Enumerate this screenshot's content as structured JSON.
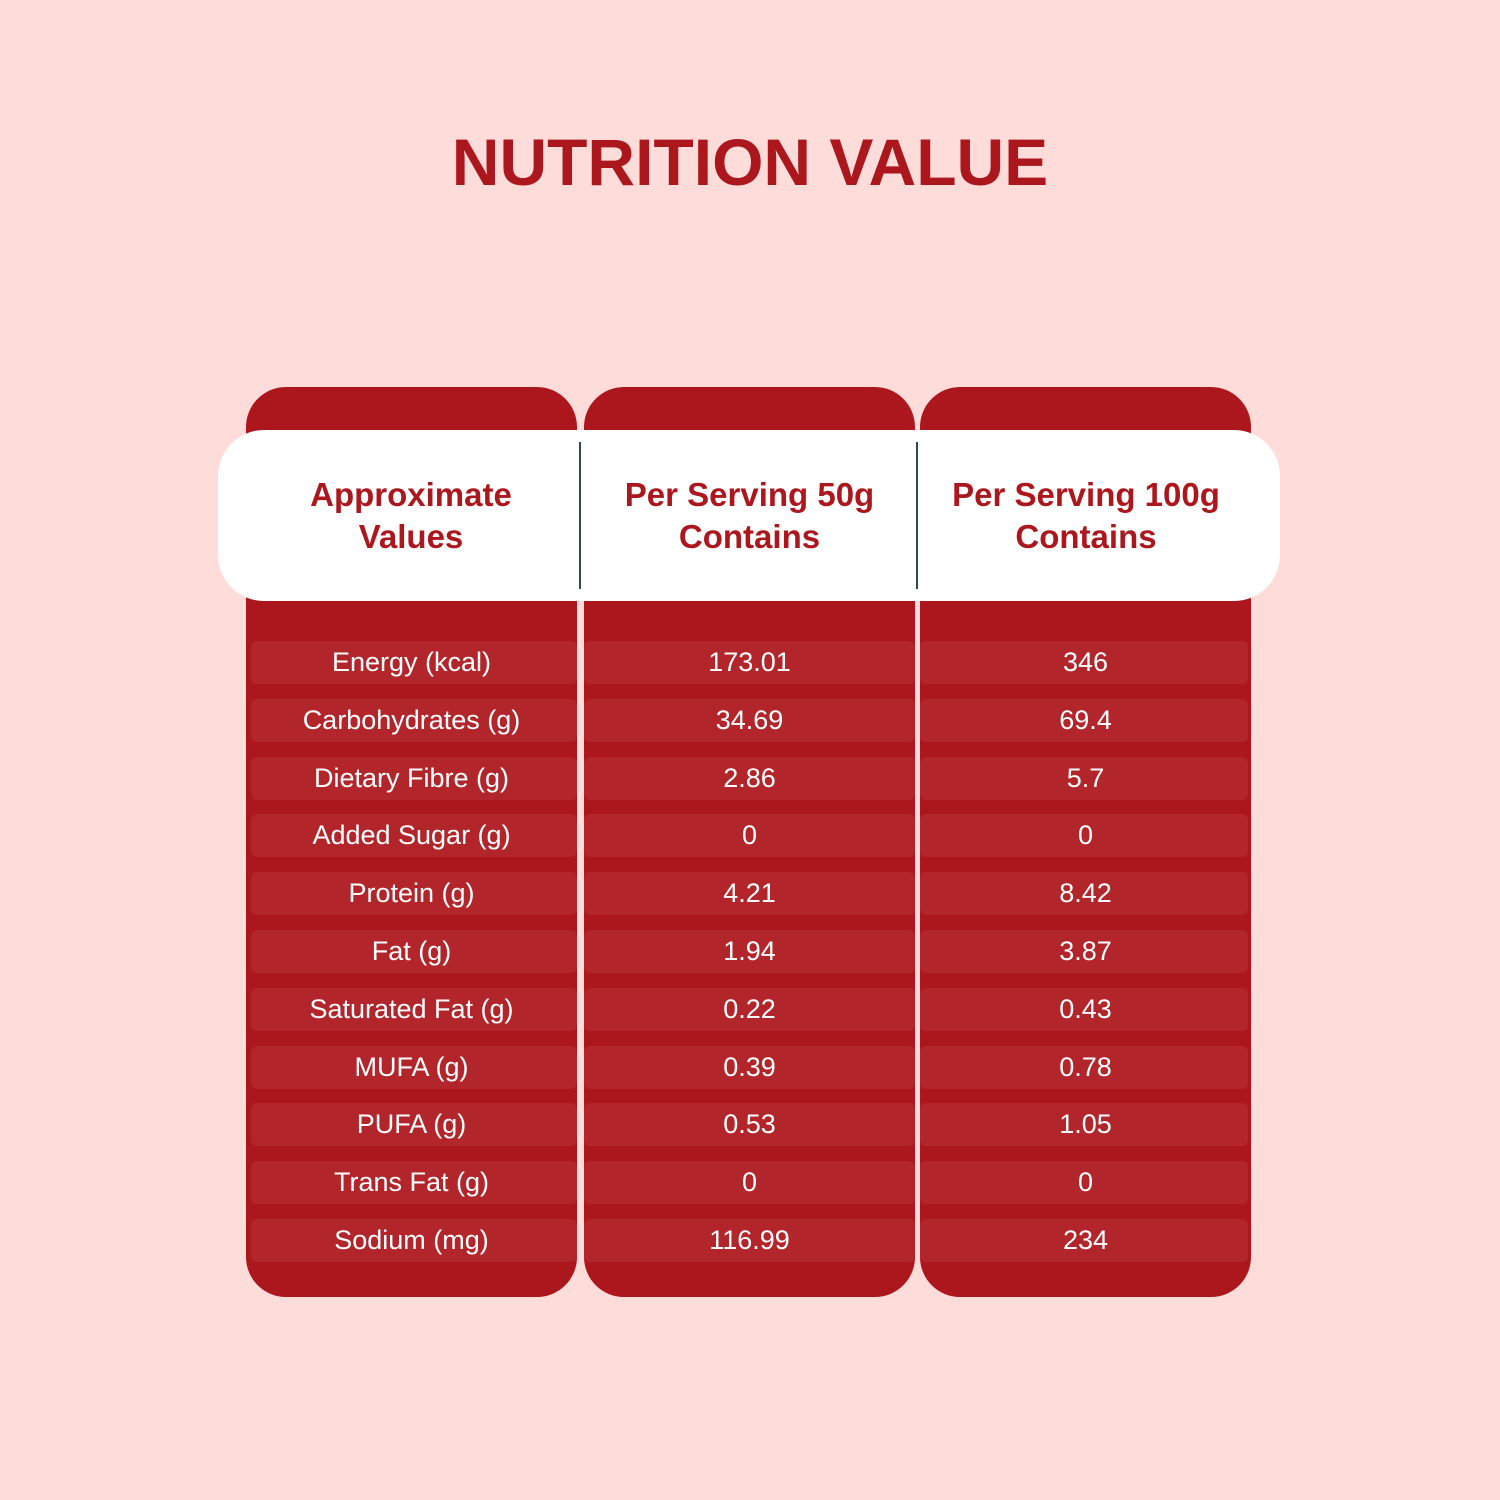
{
  "title": "NUTRITION VALUE",
  "table": {
    "headers": [
      "Approximate\nValues",
      "Per Serving 50g\nContains",
      "Per Serving 100g\nContains"
    ],
    "rows": [
      [
        "Energy (kcal)",
        "173.01",
        "346"
      ],
      [
        "Carbohydrates (g)",
        "34.69",
        "69.4"
      ],
      [
        "Dietary Fibre (g)",
        "2.86",
        "5.7"
      ],
      [
        "Added Sugar (g)",
        "0",
        "0"
      ],
      [
        "Protein (g)",
        "4.21",
        "8.42"
      ],
      [
        "Fat (g)",
        "1.94",
        "3.87"
      ],
      [
        "Saturated Fat (g)",
        "0.22",
        "0.43"
      ],
      [
        "MUFA (g)",
        "0.39",
        "0.78"
      ],
      [
        "PUFA (g)",
        "0.53",
        "1.05"
      ],
      [
        "Trans Fat (g)",
        "0",
        "0"
      ],
      [
        "Sodium (mg)",
        "116.99",
        "234"
      ]
    ]
  },
  "colors": {
    "background": "#fedcda",
    "primary_red": "#ab171c",
    "row_stripe": "#b2262b",
    "header_bg": "#ffffff"
  }
}
